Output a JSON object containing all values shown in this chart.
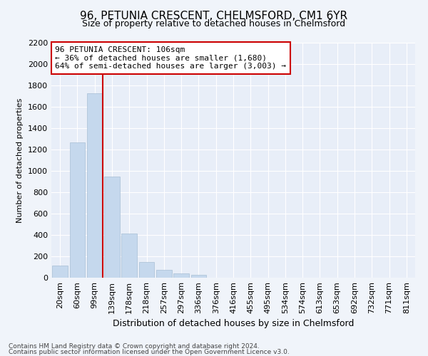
{
  "title": "96, PETUNIA CRESCENT, CHELMSFORD, CM1 6YR",
  "subtitle": "Size of property relative to detached houses in Chelmsford",
  "xlabel": "Distribution of detached houses by size in Chelmsford",
  "ylabel": "Number of detached properties",
  "categories": [
    "20sqm",
    "60sqm",
    "99sqm",
    "139sqm",
    "178sqm",
    "218sqm",
    "257sqm",
    "297sqm",
    "336sqm",
    "376sqm",
    "416sqm",
    "455sqm",
    "495sqm",
    "534sqm",
    "574sqm",
    "613sqm",
    "653sqm",
    "692sqm",
    "732sqm",
    "771sqm",
    "811sqm"
  ],
  "values": [
    115,
    1270,
    1730,
    950,
    415,
    150,
    75,
    40,
    25,
    0,
    0,
    0,
    0,
    0,
    0,
    0,
    0,
    0,
    0,
    0,
    0
  ],
  "bar_color": "#c5d8ed",
  "bar_edge_color": "#a8bfd4",
  "vline_color": "#cc0000",
  "annotation_text": "96 PETUNIA CRESCENT: 106sqm\n← 36% of detached houses are smaller (1,680)\n64% of semi-detached houses are larger (3,003) →",
  "annotation_box_color": "#ffffff",
  "annotation_box_edge": "#cc0000",
  "ylim": [
    0,
    2200
  ],
  "yticks": [
    0,
    200,
    400,
    600,
    800,
    1000,
    1200,
    1400,
    1600,
    1800,
    2000,
    2200
  ],
  "footnote1": "Contains HM Land Registry data © Crown copyright and database right 2024.",
  "footnote2": "Contains public sector information licensed under the Open Government Licence v3.0.",
  "bg_color": "#f0f4fa",
  "plot_bg_color": "#e8eef8",
  "title_fontsize": 11,
  "subtitle_fontsize": 9,
  "ylabel_fontsize": 8,
  "xlabel_fontsize": 9,
  "tick_fontsize": 8,
  "annot_fontsize": 8
}
